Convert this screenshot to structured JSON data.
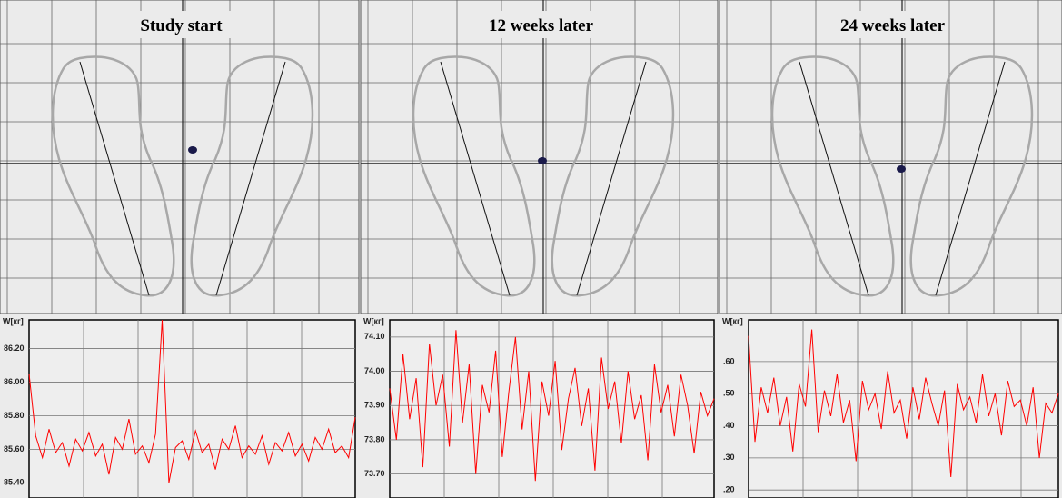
{
  "chart_data": [
    {
      "type": "line",
      "title": "Study start",
      "y_label": "W[кг]",
      "ylim": [
        85.31,
        86.37
      ],
      "yticks": [
        {
          "value": 86.2,
          "label": "86.20"
        },
        {
          "value": 86.0,
          "label": "86.00"
        },
        {
          "value": 85.8,
          "label": "85.80"
        },
        {
          "value": 85.6,
          "label": "85.60"
        },
        {
          "value": 85.4,
          "label": "85.40"
        }
      ],
      "series": [
        {
          "color": "#ff0000",
          "values": [
            86.05,
            85.68,
            85.55,
            85.72,
            85.58,
            85.64,
            85.5,
            85.66,
            85.59,
            85.7,
            85.56,
            85.63,
            85.45,
            85.67,
            85.6,
            85.78,
            85.57,
            85.62,
            85.52,
            85.69,
            86.37,
            85.4,
            85.61,
            85.65,
            85.54,
            85.71,
            85.58,
            85.63,
            85.48,
            85.66,
            85.6,
            85.74,
            85.55,
            85.62,
            85.57,
            85.68,
            85.51,
            85.64,
            85.59,
            85.7,
            85.56,
            85.63,
            85.53,
            85.67,
            85.6,
            85.72,
            85.58,
            85.62,
            85.55,
            85.79
          ]
        }
      ]
    },
    {
      "type": "line",
      "title": "12 weeks later",
      "y_label": "W[кг]",
      "ylim": [
        73.63,
        74.15
      ],
      "yticks": [
        {
          "value": 74.1,
          "label": "74.10"
        },
        {
          "value": 74.0,
          "label": "74.00"
        },
        {
          "value": 73.9,
          "label": "73.90"
        },
        {
          "value": 73.8,
          "label": "73.80"
        },
        {
          "value": 73.7,
          "label": "73.70"
        }
      ],
      "series": [
        {
          "color": "#ff0000",
          "values": [
            73.95,
            73.8,
            74.05,
            73.86,
            73.98,
            73.72,
            74.08,
            73.9,
            73.99,
            73.78,
            74.12,
            73.85,
            74.02,
            73.7,
            73.96,
            73.88,
            74.06,
            73.75,
            73.94,
            74.1,
            73.83,
            74.0,
            73.68,
            73.97,
            73.87,
            74.03,
            73.77,
            73.92,
            74.01,
            73.84,
            73.95,
            73.71,
            74.04,
            73.89,
            73.97,
            73.79,
            74.0,
            73.86,
            73.93,
            73.74,
            74.02,
            73.88,
            73.96,
            73.81,
            73.99,
            73.9,
            73.76,
            73.94,
            73.87,
            73.92
          ]
        }
      ]
    },
    {
      "type": "line",
      "title": "24 weeks later",
      "y_label": "W[кг]",
      "ylim": [
        0.175,
        0.73
      ],
      "yticks": [
        {
          "value": 0.6,
          "label": ".60"
        },
        {
          "value": 0.5,
          "label": ".50"
        },
        {
          "value": 0.4,
          "label": ".40"
        },
        {
          "value": 0.3,
          "label": ".30"
        },
        {
          "value": 0.2,
          "label": ".20"
        }
      ],
      "series": [
        {
          "color": "#ff0000",
          "values": [
            0.68,
            0.35,
            0.52,
            0.44,
            0.55,
            0.4,
            0.49,
            0.32,
            0.53,
            0.46,
            0.7,
            0.38,
            0.51,
            0.43,
            0.56,
            0.41,
            0.48,
            0.29,
            0.54,
            0.45,
            0.5,
            0.39,
            0.57,
            0.44,
            0.48,
            0.36,
            0.52,
            0.42,
            0.55,
            0.47,
            0.4,
            0.51,
            0.24,
            0.53,
            0.45,
            0.49,
            0.41,
            0.56,
            0.43,
            0.5,
            0.37,
            0.54,
            0.46,
            0.48,
            0.4,
            0.52,
            0.3,
            0.47,
            0.44,
            0.5
          ]
        }
      ]
    }
  ]
}
